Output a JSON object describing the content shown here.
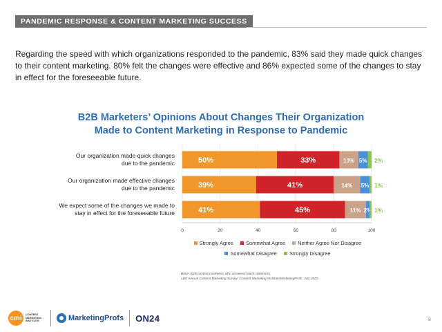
{
  "header": {
    "section_title": "PANDEMIC RESPONSE & CONTENT MARKETING SUCCESS"
  },
  "intro_text": "Regarding the speed with which organizations responded to the pandemic, 83% said they made quick changes to their content marketing. 80% felt the changes were effective and 86% expected some of the changes to stay in effect for the foreseeable future.",
  "chart_data": {
    "type": "bar",
    "orientation": "horizontal",
    "stacked": true,
    "title_line1": "B2B Marketers’ Opinions About Changes Their Organization",
    "title_line2": "Made to Content Marketing in Response to Pandemic",
    "categories": [
      [
        "Our organization made quick changes",
        "due to the pandemic"
      ],
      [
        "Our organization made effective changes",
        "due to the pandemic"
      ],
      [
        "We expect some of the changes we made to",
        "stay in effect for the foreseeable future"
      ]
    ],
    "series": [
      {
        "name": "Strongly Agree",
        "color": "#f0962a",
        "values": [
          50,
          39,
          41
        ]
      },
      {
        "name": "Somewhat Agree",
        "color": "#d1232a",
        "values": [
          33,
          41,
          45
        ]
      },
      {
        "name": "Neither Agree Nor Disagree",
        "color": "#c9a287",
        "values": [
          10,
          14,
          11
        ]
      },
      {
        "name": "Somewhat Disagree",
        "color": "#4a90d6",
        "values": [
          5,
          5,
          2
        ]
      },
      {
        "name": "Strongly Disagree",
        "color": "#8dc63f",
        "values": [
          2,
          1,
          1
        ]
      }
    ],
    "x_ticks": [
      0,
      20,
      40,
      60,
      80,
      100
    ],
    "xlim": [
      0,
      100
    ],
    "grid": "vertical",
    "legend": "bottom"
  },
  "footnote": {
    "line1": "Base: B2B content marketers who answered each statement.",
    "line2": "11th Annual Content Marketing Survey: Content Marketing Institute/MarketingProfs, July 2020"
  },
  "footer": {
    "cmi_mark": "cmi",
    "cmi_text": "CONTENT\nMARKETING\nINSTITUTE",
    "marketingprofs": "MarketingProfs",
    "on24": "ON24"
  },
  "page_number": "8"
}
